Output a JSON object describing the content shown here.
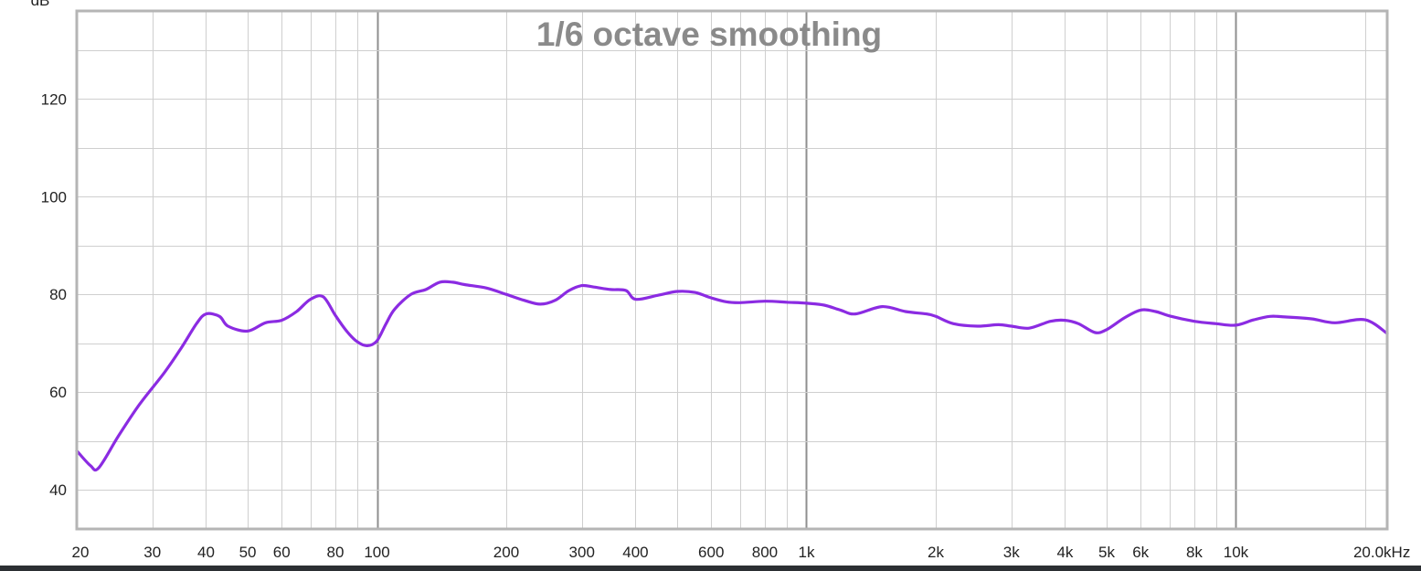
{
  "chart_data": {
    "type": "line",
    "title": "1/6 octave smoothing",
    "ylabel": "dB",
    "xlabel": "",
    "x_scale": "log",
    "xlim": [
      20,
      22500
    ],
    "ylim": [
      32,
      138
    ],
    "grid": true,
    "legend": "none",
    "y_ticks": [
      {
        "value": 40,
        "label": "40"
      },
      {
        "value": 60,
        "label": "60"
      },
      {
        "value": 80,
        "label": "80"
      },
      {
        "value": 100,
        "label": "100"
      },
      {
        "value": 120,
        "label": "120"
      }
    ],
    "x_ticks": [
      {
        "value": 20,
        "label": "20"
      },
      {
        "value": 30,
        "label": "30"
      },
      {
        "value": 40,
        "label": "40"
      },
      {
        "value": 50,
        "label": "50"
      },
      {
        "value": 60,
        "label": "60"
      },
      {
        "value": 80,
        "label": "80"
      },
      {
        "value": 100,
        "label": "100"
      },
      {
        "value": 200,
        "label": "200"
      },
      {
        "value": 300,
        "label": "300"
      },
      {
        "value": 400,
        "label": "400"
      },
      {
        "value": 600,
        "label": "600"
      },
      {
        "value": 800,
        "label": "800"
      },
      {
        "value": 1000,
        "label": "1k"
      },
      {
        "value": 2000,
        "label": "2k"
      },
      {
        "value": 3000,
        "label": "3k"
      },
      {
        "value": 4000,
        "label": "4k"
      },
      {
        "value": 5000,
        "label": "5k"
      },
      {
        "value": 6000,
        "label": "6k"
      },
      {
        "value": 8000,
        "label": "8k"
      },
      {
        "value": 10000,
        "label": "10k"
      },
      {
        "value": 20000,
        "label": "20.0kHz"
      }
    ],
    "x_gridlines": [
      20,
      30,
      40,
      50,
      60,
      70,
      80,
      90,
      100,
      200,
      300,
      400,
      500,
      600,
      700,
      800,
      900,
      1000,
      2000,
      3000,
      4000,
      5000,
      6000,
      7000,
      8000,
      9000,
      10000,
      20000
    ],
    "x_major_gridlines": [
      100,
      1000,
      10000
    ],
    "series": [
      {
        "color": "#8b2be2",
        "x": [
          20,
          21.5,
          22.5,
          25,
          28,
          32,
          35,
          38,
          40,
          43,
          45,
          50,
          55,
          60,
          65,
          70,
          75,
          80,
          85,
          90,
          95,
          100,
          105,
          110,
          120,
          130,
          140,
          150,
          160,
          180,
          200,
          220,
          240,
          260,
          280,
          300,
          320,
          350,
          380,
          400,
          450,
          500,
          550,
          600,
          650,
          700,
          800,
          900,
          1000,
          1100,
          1200,
          1300,
          1500,
          1700,
          1900,
          2000,
          2200,
          2500,
          2800,
          3000,
          3300,
          3700,
          4000,
          4300,
          4700,
          5000,
          5500,
          6000,
          6500,
          7000,
          8000,
          9000,
          10000,
          11000,
          12000,
          13000,
          15000,
          17000,
          20000,
          22500
        ],
        "y": [
          48,
          45,
          44.5,
          51,
          57.5,
          64,
          69,
          74,
          76,
          75.5,
          73.5,
          72.5,
          74.2,
          74.7,
          76.5,
          79,
          79.5,
          75.7,
          72.5,
          70.3,
          69.5,
          70.5,
          74,
          77,
          80,
          81,
          82.5,
          82.5,
          82,
          81.3,
          80,
          78.8,
          78,
          78.8,
          80.8,
          81.8,
          81.5,
          81,
          80.8,
          79,
          79.8,
          80.6,
          80.4,
          79.3,
          78.5,
          78.3,
          78.6,
          78.4,
          78.2,
          77.8,
          76.8,
          76,
          77.5,
          76.5,
          76,
          75.5,
          74,
          73.5,
          73.8,
          73.5,
          73.1,
          74.5,
          74.7,
          74,
          72.2,
          72.8,
          75.2,
          76.8,
          76.5,
          75.6,
          74.5,
          74,
          73.7,
          74.8,
          75.5,
          75.4,
          75,
          74.2,
          74.8,
          72
        ]
      }
    ]
  }
}
